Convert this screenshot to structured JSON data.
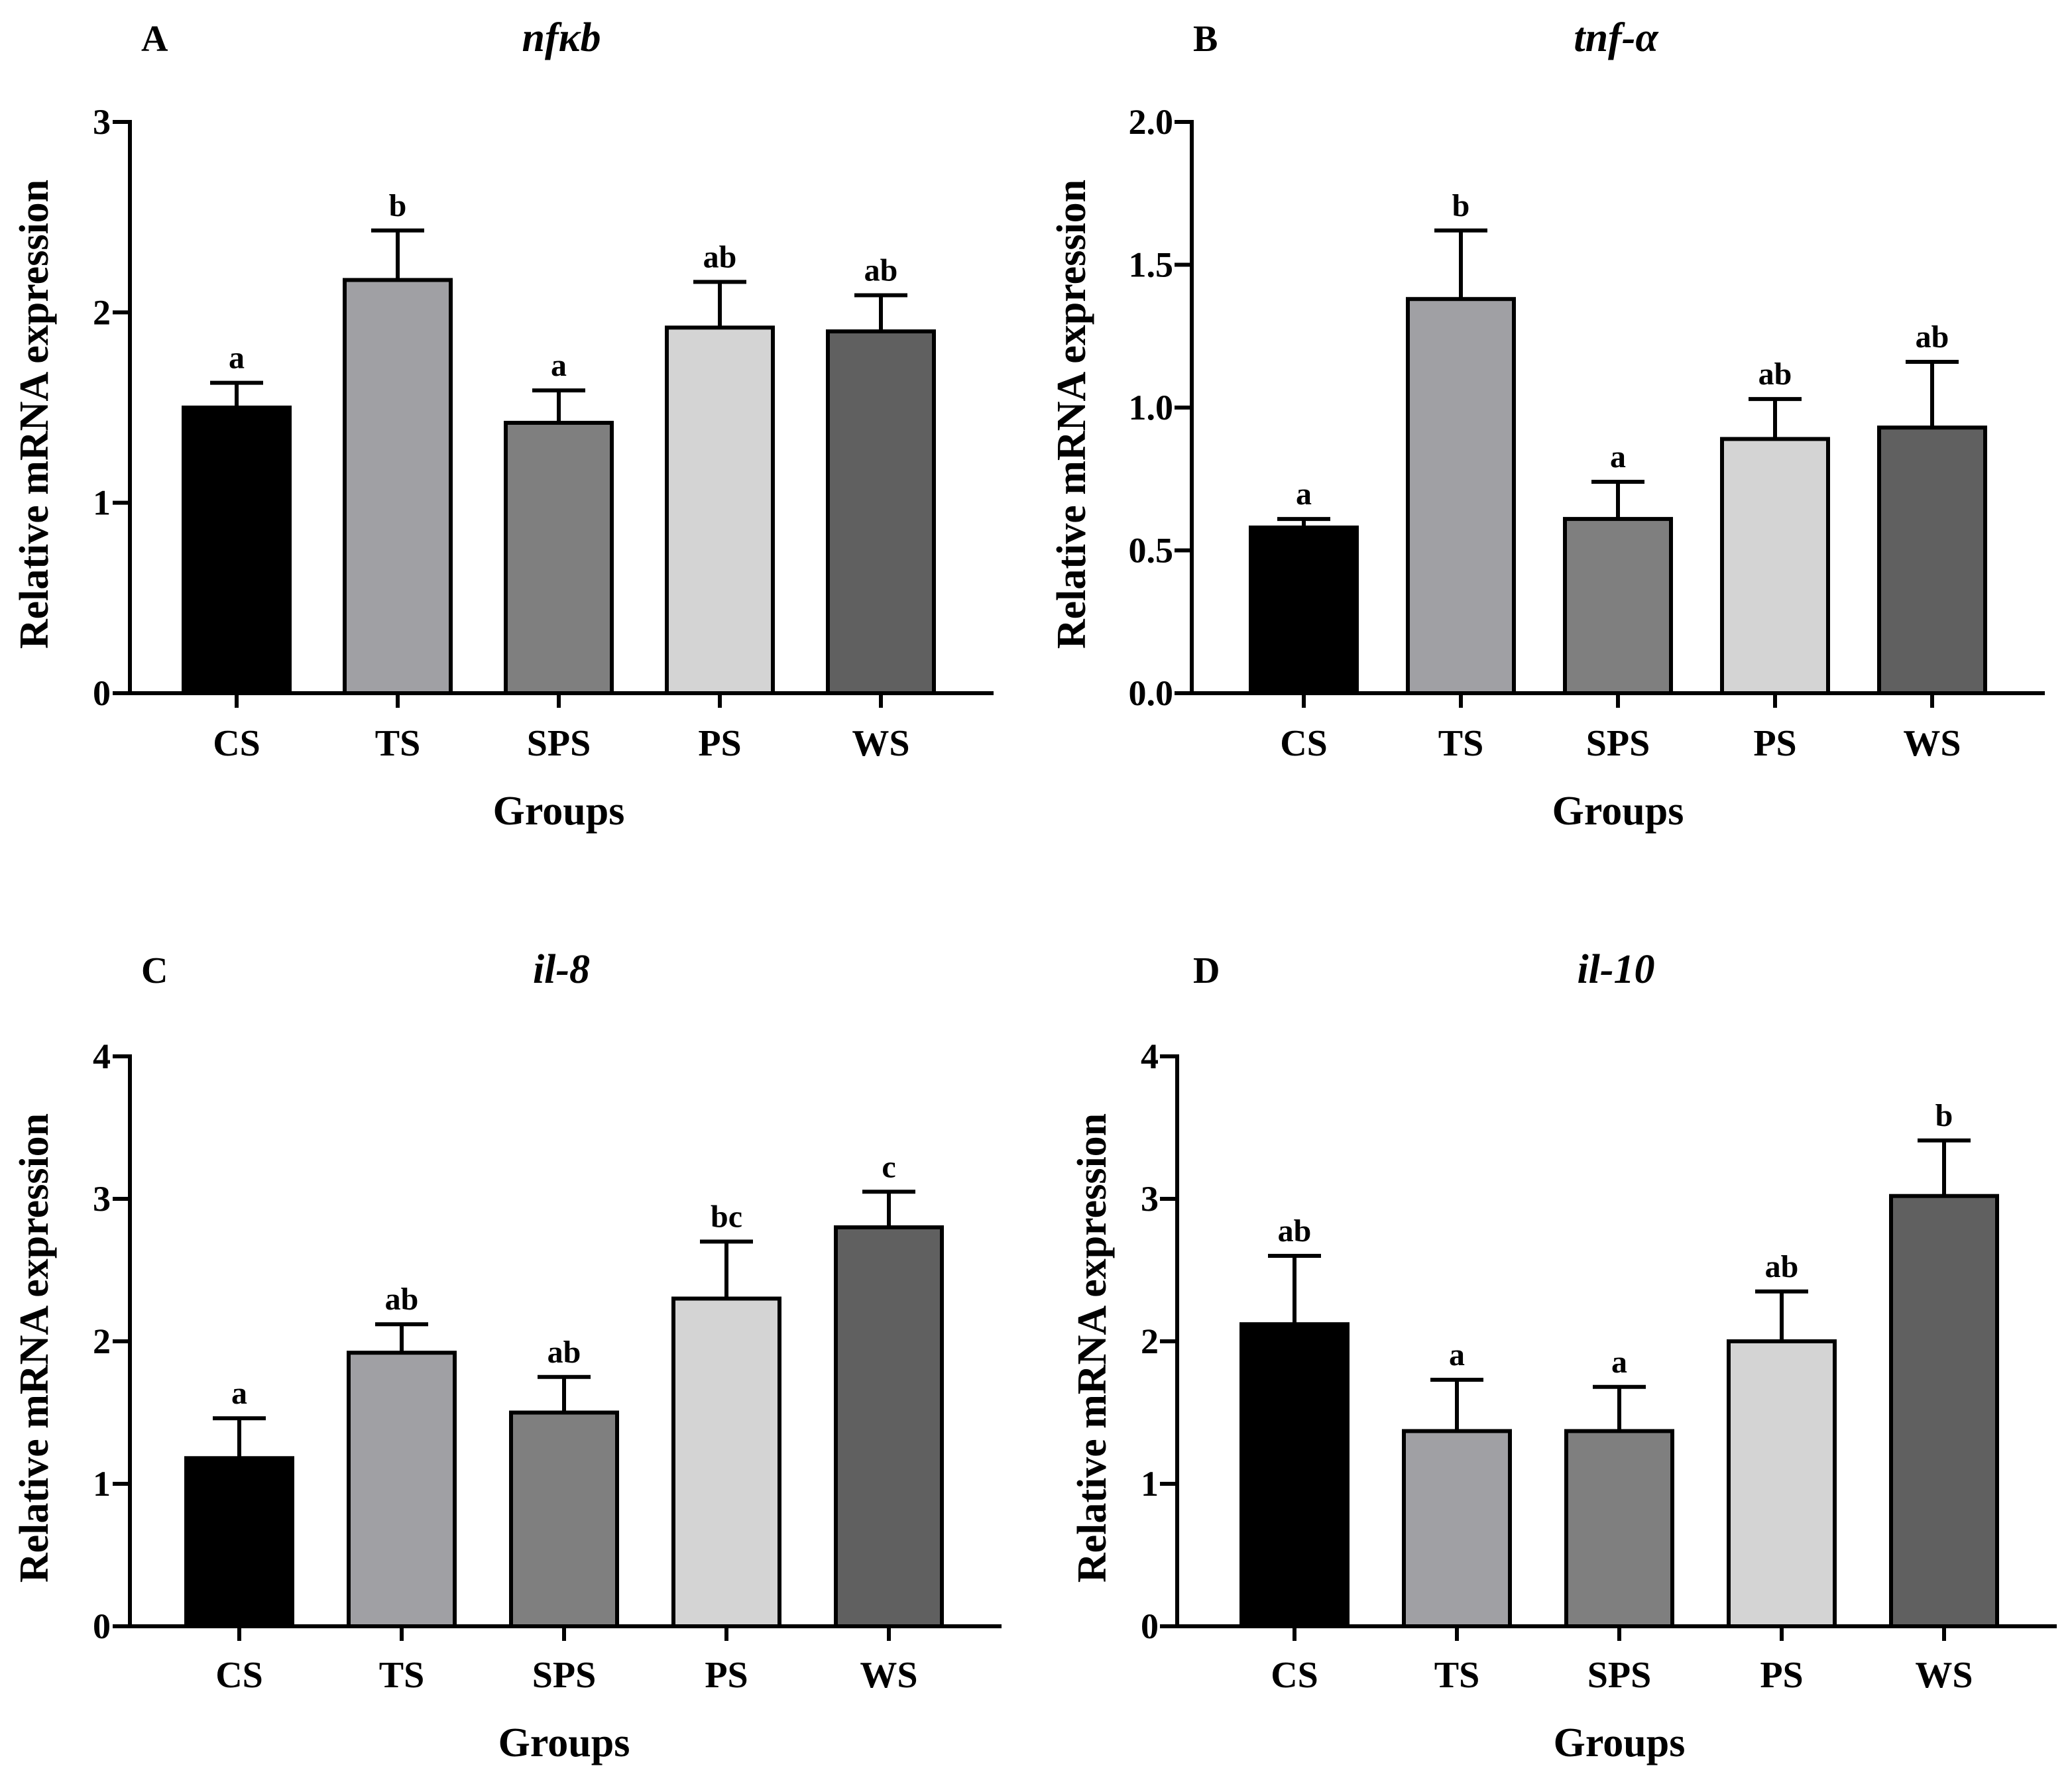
{
  "chart_data": [
    {
      "type": "bar",
      "panel": "A",
      "title": "nfκb",
      "xlabel": "Groups",
      "ylabel": "Relative mRNA expression",
      "categories": [
        "CS",
        "TS",
        "SPS",
        "PS",
        "WS"
      ],
      "values": [
        1.5,
        2.17,
        1.42,
        1.92,
        1.9
      ],
      "errors": [
        0.13,
        0.26,
        0.17,
        0.24,
        0.19
      ],
      "significance": [
        "a",
        "b",
        "a",
        "ab",
        "ab"
      ],
      "ylim": [
        0,
        3
      ],
      "yticks": [
        0,
        1,
        2,
        3
      ],
      "ytick_labels": [
        "0",
        "1",
        "2",
        "3"
      ]
    },
    {
      "type": "bar",
      "panel": "B",
      "title": "tnf-α",
      "xlabel": "Groups",
      "ylabel": "Relative mRNA expression",
      "categories": [
        "CS",
        "TS",
        "SPS",
        "PS",
        "WS"
      ],
      "values": [
        0.58,
        1.38,
        0.61,
        0.89,
        0.93
      ],
      "errors": [
        0.03,
        0.24,
        0.13,
        0.14,
        0.23
      ],
      "significance": [
        "a",
        "b",
        "a",
        "ab",
        "ab"
      ],
      "ylim": [
        0,
        2.0
      ],
      "yticks": [
        0,
        0.5,
        1.0,
        1.5,
        2.0
      ],
      "ytick_labels": [
        "0.0",
        "0.5",
        "1.0",
        "1.5",
        "2.0"
      ]
    },
    {
      "type": "bar",
      "panel": "C",
      "title": "il-8",
      "xlabel": "Groups",
      "ylabel": "Relative mRNA expression",
      "categories": [
        "CS",
        "TS",
        "SPS",
        "PS",
        "WS"
      ],
      "values": [
        1.18,
        1.92,
        1.5,
        2.3,
        2.8
      ],
      "errors": [
        0.28,
        0.2,
        0.25,
        0.4,
        0.25
      ],
      "significance": [
        "a",
        "ab",
        "ab",
        "bc",
        "c"
      ],
      "ylim": [
        0,
        4
      ],
      "yticks": [
        0,
        1,
        2,
        3,
        4
      ],
      "ytick_labels": [
        "0",
        "1",
        "2",
        "3",
        "4"
      ]
    },
    {
      "type": "bar",
      "panel": "D",
      "title": "il-10",
      "xlabel": "Groups",
      "ylabel": "Relative mRNA expression",
      "categories": [
        "CS",
        "TS",
        "SPS",
        "PS",
        "WS"
      ],
      "values": [
        2.12,
        1.37,
        1.37,
        2.0,
        3.02
      ],
      "errors": [
        0.48,
        0.36,
        0.31,
        0.35,
        0.39
      ],
      "significance": [
        "ab",
        "a",
        "a",
        "ab",
        "b"
      ],
      "ylim": [
        0,
        4
      ],
      "yticks": [
        0,
        1,
        2,
        3,
        4
      ],
      "ytick_labels": [
        "0",
        "1",
        "2",
        "3",
        "4"
      ]
    }
  ],
  "colors": {
    "CS": "#000000",
    "TS": "#a0a0a4",
    "SPS": "#7f7f7f",
    "PS": "#d4d4d4",
    "WS": "#606060",
    "axis": "#000000"
  }
}
